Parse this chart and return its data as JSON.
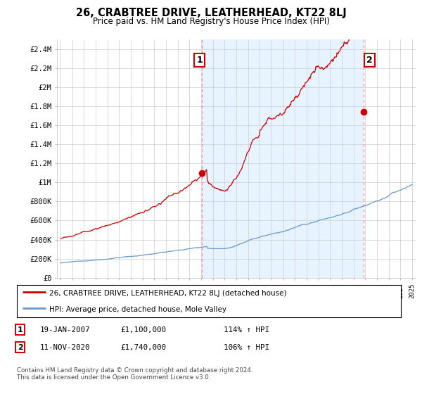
{
  "title": "26, CRABTREE DRIVE, LEATHERHEAD, KT22 8LJ",
  "subtitle": "Price paid vs. HM Land Registry's House Price Index (HPI)",
  "legend_line1": "26, CRABTREE DRIVE, LEATHERHEAD, KT22 8LJ (detached house)",
  "legend_line2": "HPI: Average price, detached house, Mole Valley",
  "annotation1_date": "19-JAN-2007",
  "annotation1_price": "£1,100,000",
  "annotation1_hpi": "114% ↑ HPI",
  "annotation2_date": "11-NOV-2020",
  "annotation2_price": "£1,740,000",
  "annotation2_hpi": "106% ↑ HPI",
  "footnote": "Contains HM Land Registry data © Crown copyright and database right 2024.\nThis data is licensed under the Open Government Licence v3.0.",
  "hpi_color": "#6699cc",
  "price_color": "#cc0000",
  "vline_color": "#ff8888",
  "shade_color": "#ddeeff",
  "background_color": "#ffffff",
  "grid_color": "#cccccc",
  "ylim": [
    0,
    2500000
  ],
  "yticks": [
    0,
    200000,
    400000,
    600000,
    800000,
    1000000,
    1200000,
    1400000,
    1600000,
    1800000,
    2000000,
    2200000,
    2400000
  ],
  "ytick_labels": [
    "£0",
    "£200K",
    "£400K",
    "£600K",
    "£800K",
    "£1M",
    "£1.2M",
    "£1.4M",
    "£1.6M",
    "£1.8M",
    "£2M",
    "£2.2M",
    "£2.4M"
  ],
  "sale1_year": 2007.05,
  "sale1_price": 1100000,
  "sale2_year": 2020.87,
  "sale2_price": 1740000,
  "xmin": 1995,
  "xmax": 2025
}
